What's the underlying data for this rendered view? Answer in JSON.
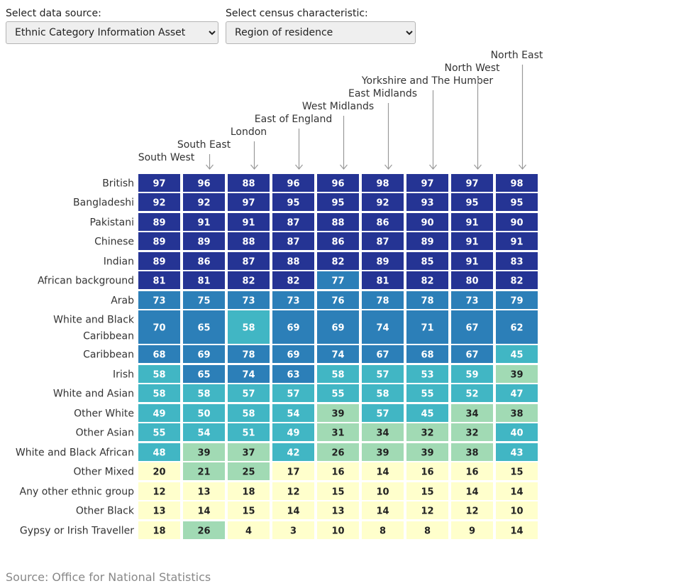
{
  "controls": {
    "source": {
      "label": "Select data source:",
      "value": "Ethnic Category Information Asset"
    },
    "characteristic": {
      "label": "Select census characteristic:",
      "value": "Region of residence"
    }
  },
  "source_text": "Source: Office for National Statistics",
  "colors": {
    "dark_blue": "#253494",
    "mid_blue": "#2c7fb8",
    "teal": "#41b6c4",
    "light_green": "#a1dab4",
    "pale_yellow": "#ffffcc",
    "arrow": "#999999"
  },
  "chart_data": {
    "type": "heatmap",
    "columns": [
      "South West",
      "South East",
      "London",
      "East of England",
      "West Midlands",
      "East Midlands",
      "Yorkshire and The Humber",
      "North West",
      "North East"
    ],
    "rows": [
      "British",
      "Bangladeshi",
      "Pakistani",
      "Chinese",
      "Indian",
      "African background",
      "Arab",
      "White and Black Caribbean",
      "Caribbean",
      "Irish",
      "White and Asian",
      "Other White",
      "Other Asian",
      "White and Black African",
      "Other Mixed",
      "Any other ethnic group",
      "Other Black",
      "Gypsy or Irish Traveller"
    ],
    "values": [
      [
        97,
        96,
        88,
        96,
        96,
        98,
        97,
        97,
        98
      ],
      [
        92,
        92,
        97,
        95,
        95,
        92,
        93,
        95,
        95
      ],
      [
        89,
        91,
        91,
        87,
        88,
        86,
        90,
        91,
        90
      ],
      [
        89,
        89,
        88,
        87,
        86,
        87,
        89,
        91,
        91
      ],
      [
        89,
        86,
        87,
        88,
        82,
        89,
        85,
        91,
        83
      ],
      [
        81,
        81,
        82,
        82,
        77,
        81,
        82,
        80,
        82
      ],
      [
        73,
        75,
        73,
        73,
        76,
        78,
        78,
        73,
        79
      ],
      [
        70,
        65,
        58,
        69,
        69,
        74,
        71,
        67,
        62
      ],
      [
        68,
        69,
        78,
        69,
        74,
        67,
        68,
        67,
        45
      ],
      [
        58,
        65,
        74,
        63,
        58,
        57,
        53,
        59,
        39
      ],
      [
        58,
        58,
        57,
        57,
        55,
        58,
        55,
        52,
        47
      ],
      [
        49,
        50,
        58,
        54,
        39,
        57,
        45,
        34,
        38
      ],
      [
        55,
        54,
        51,
        49,
        31,
        34,
        32,
        32,
        40
      ],
      [
        48,
        39,
        37,
        42,
        26,
        39,
        39,
        38,
        43
      ],
      [
        20,
        21,
        25,
        17,
        16,
        14,
        16,
        16,
        15
      ],
      [
        12,
        13,
        18,
        12,
        15,
        10,
        15,
        14,
        14
      ],
      [
        13,
        14,
        15,
        14,
        13,
        14,
        12,
        12,
        10
      ],
      [
        18,
        26,
        4,
        3,
        10,
        8,
        8,
        9,
        14
      ]
    ]
  }
}
